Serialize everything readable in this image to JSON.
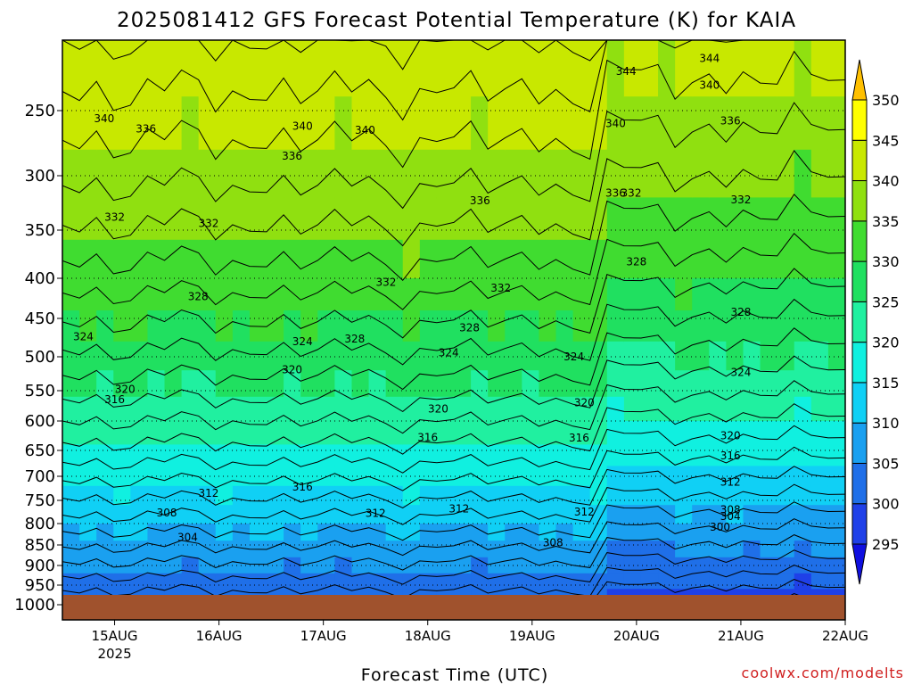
{
  "chart_data": {
    "type": "heatmap",
    "title": "2025081412 GFS Forecast Potential Temperature (K) for KAIA",
    "xlabel": "Forecast Time (UTC)",
    "ylabel": "",
    "x_ticks": [
      "15AUG",
      "16AUG",
      "17AUG",
      "18AUG",
      "19AUG",
      "20AUG",
      "21AUG",
      "22AUG"
    ],
    "x_ticks_sub": [
      "2025",
      "",
      "",
      "",
      "",
      "",
      "",
      ""
    ],
    "y_ticks": [
      250,
      300,
      350,
      400,
      450,
      500,
      550,
      600,
      650,
      700,
      750,
      800,
      850,
      900,
      950,
      1000
    ],
    "ylim": [
      1000,
      200
    ],
    "colorbar_levels": [
      295,
      300,
      305,
      310,
      315,
      320,
      325,
      330,
      335,
      340,
      345,
      350
    ],
    "colorbar_colors": [
      "#1010e0",
      "#1f40e8",
      "#1f6fe8",
      "#1aa0f0",
      "#10d0f5",
      "#10f0e0",
      "#20f0a0",
      "#20e060",
      "#40dc30",
      "#90e010",
      "#c8e800",
      "#ffff00",
      "#ffc000"
    ],
    "surface_color": "#a0522d",
    "contour_labels": [
      {
        "value": "344",
        "x": 20.7,
        "p": 213
      },
      {
        "value": "340",
        "x": 20.7,
        "p": 232
      },
      {
        "value": "344",
        "x": 19.9,
        "p": 222
      },
      {
        "value": "340",
        "x": 14.9,
        "p": 256
      },
      {
        "value": "340",
        "x": 16.8,
        "p": 262
      },
      {
        "value": "340",
        "x": 17.4,
        "p": 265
      },
      {
        "value": "340",
        "x": 19.8,
        "p": 260
      },
      {
        "value": "336",
        "x": 20.9,
        "p": 258
      },
      {
        "value": "336",
        "x": 15.3,
        "p": 264
      },
      {
        "value": "336",
        "x": 16.7,
        "p": 285
      },
      {
        "value": "336",
        "x": 18.5,
        "p": 323
      },
      {
        "value": "336",
        "x": 19.8,
        "p": 316
      },
      {
        "value": "332",
        "x": 19.95,
        "p": 316
      },
      {
        "value": "332",
        "x": 21.0,
        "p": 322
      },
      {
        "value": "332",
        "x": 15.0,
        "p": 338
      },
      {
        "value": "332",
        "x": 15.9,
        "p": 344
      },
      {
        "value": "332",
        "x": 17.6,
        "p": 405
      },
      {
        "value": "332",
        "x": 18.7,
        "p": 412
      },
      {
        "value": "328",
        "x": 20.0,
        "p": 383
      },
      {
        "value": "328",
        "x": 15.8,
        "p": 423
      },
      {
        "value": "328",
        "x": 17.3,
        "p": 477
      },
      {
        "value": "328",
        "x": 18.4,
        "p": 462
      },
      {
        "value": "328",
        "x": 21.0,
        "p": 442
      },
      {
        "value": "324",
        "x": 14.7,
        "p": 474
      },
      {
        "value": "324",
        "x": 16.8,
        "p": 480
      },
      {
        "value": "324",
        "x": 18.2,
        "p": 495
      },
      {
        "value": "324",
        "x": 19.4,
        "p": 500
      },
      {
        "value": "324",
        "x": 21.0,
        "p": 523
      },
      {
        "value": "320",
        "x": 16.7,
        "p": 519
      },
      {
        "value": "320",
        "x": 15.1,
        "p": 548
      },
      {
        "value": "320",
        "x": 18.1,
        "p": 580
      },
      {
        "value": "320",
        "x": 19.5,
        "p": 570
      },
      {
        "value": "320",
        "x": 20.9,
        "p": 625
      },
      {
        "value": "316",
        "x": 15.0,
        "p": 565
      },
      {
        "value": "316",
        "x": 18.0,
        "p": 628
      },
      {
        "value": "316",
        "x": 19.45,
        "p": 629
      },
      {
        "value": "316",
        "x": 20.9,
        "p": 660
      },
      {
        "value": "316",
        "x": 16.8,
        "p": 722
      },
      {
        "value": "312",
        "x": 15.9,
        "p": 735
      },
      {
        "value": "312",
        "x": 20.9,
        "p": 712
      },
      {
        "value": "312",
        "x": 17.5,
        "p": 778
      },
      {
        "value": "312",
        "x": 18.3,
        "p": 768
      },
      {
        "value": "312",
        "x": 19.5,
        "p": 775
      },
      {
        "value": "308",
        "x": 15.5,
        "p": 777
      },
      {
        "value": "308",
        "x": 20.9,
        "p": 770
      },
      {
        "value": "304",
        "x": 20.9,
        "p": 785
      },
      {
        "value": "304",
        "x": 15.7,
        "p": 832
      },
      {
        "value": "300",
        "x": 20.8,
        "p": 808
      },
      {
        "value": "308",
        "x": 19.2,
        "p": 845
      }
    ]
  },
  "credit": "coolwx.com/modelts"
}
